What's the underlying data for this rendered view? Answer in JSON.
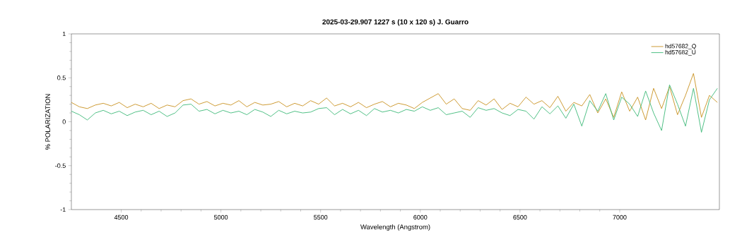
{
  "chart_data": {
    "type": "line",
    "title": "2025-03-29.907   1227 s (10 x 120 s)   J. Guarro",
    "xlabel": "Wavelength (Angstrom)",
    "ylabel": "% POLARIZATION",
    "x": [
      4250,
      4290,
      4330,
      4370,
      4410,
      4450,
      4490,
      4530,
      4570,
      4610,
      4650,
      4690,
      4730,
      4770,
      4810,
      4850,
      4890,
      4930,
      4970,
      5010,
      5050,
      5090,
      5130,
      5170,
      5210,
      5250,
      5290,
      5330,
      5370,
      5410,
      5450,
      5490,
      5530,
      5570,
      5610,
      5650,
      5690,
      5730,
      5770,
      5810,
      5850,
      5890,
      5930,
      5970,
      6010,
      6050,
      6090,
      6130,
      6170,
      6210,
      6250,
      6290,
      6330,
      6370,
      6410,
      6450,
      6490,
      6530,
      6570,
      6610,
      6650,
      6690,
      6730,
      6770,
      6810,
      6850,
      6890,
      6930,
      6970,
      7010,
      7050,
      7090,
      7130,
      7170,
      7210,
      7250,
      7290,
      7330,
      7370,
      7410,
      7450,
      7490
    ],
    "series": [
      {
        "name": "hd57682_Q",
        "color": "#c8901e",
        "values": [
          0.22,
          0.17,
          0.15,
          0.19,
          0.21,
          0.18,
          0.22,
          0.16,
          0.2,
          0.17,
          0.21,
          0.15,
          0.19,
          0.17,
          0.24,
          0.26,
          0.2,
          0.23,
          0.18,
          0.21,
          0.19,
          0.24,
          0.17,
          0.22,
          0.19,
          0.2,
          0.23,
          0.17,
          0.21,
          0.18,
          0.24,
          0.2,
          0.27,
          0.18,
          0.21,
          0.17,
          0.22,
          0.16,
          0.2,
          0.23,
          0.17,
          0.21,
          0.19,
          0.15,
          0.22,
          0.27,
          0.32,
          0.2,
          0.26,
          0.15,
          0.13,
          0.24,
          0.19,
          0.26,
          0.14,
          0.21,
          0.17,
          0.28,
          0.2,
          0.24,
          0.16,
          0.29,
          0.12,
          0.22,
          0.18,
          0.31,
          0.1,
          0.26,
          0.05,
          0.34,
          0.12,
          0.28,
          0.02,
          0.38,
          0.15,
          0.4,
          0.08,
          0.3,
          0.55,
          0.05,
          0.3,
          0.22
        ]
      },
      {
        "name": "hd57682_U",
        "color": "#3cb878",
        "values": [
          0.12,
          0.08,
          0.02,
          0.1,
          0.13,
          0.09,
          0.12,
          0.07,
          0.11,
          0.13,
          0.08,
          0.12,
          0.06,
          0.1,
          0.19,
          0.2,
          0.12,
          0.14,
          0.09,
          0.13,
          0.1,
          0.12,
          0.08,
          0.14,
          0.11,
          0.06,
          0.13,
          0.09,
          0.12,
          0.1,
          0.11,
          0.15,
          0.16,
          0.08,
          0.14,
          0.09,
          0.13,
          0.07,
          0.15,
          0.11,
          0.13,
          0.1,
          0.14,
          0.12,
          0.17,
          0.13,
          0.16,
          0.08,
          0.1,
          0.12,
          0.05,
          0.16,
          0.13,
          0.15,
          0.1,
          0.07,
          0.14,
          0.12,
          0.03,
          0.17,
          0.09,
          0.18,
          0.04,
          0.2,
          -0.05,
          0.24,
          0.12,
          0.32,
          0.02,
          0.28,
          0.2,
          0.06,
          0.35,
          0.1,
          -0.1,
          0.42,
          0.2,
          -0.05,
          0.38,
          -0.12,
          0.25,
          0.38
        ]
      }
    ],
    "xlim": [
      4250,
      7500
    ],
    "ylim": [
      -1,
      1
    ],
    "xticks": [
      4500,
      5000,
      5500,
      6000,
      6500,
      7000
    ],
    "yticks": [
      -1,
      -0.5,
      0,
      0.5,
      1
    ],
    "legend": "top right",
    "grid": false,
    "marker": "none",
    "line_style": "solid"
  }
}
